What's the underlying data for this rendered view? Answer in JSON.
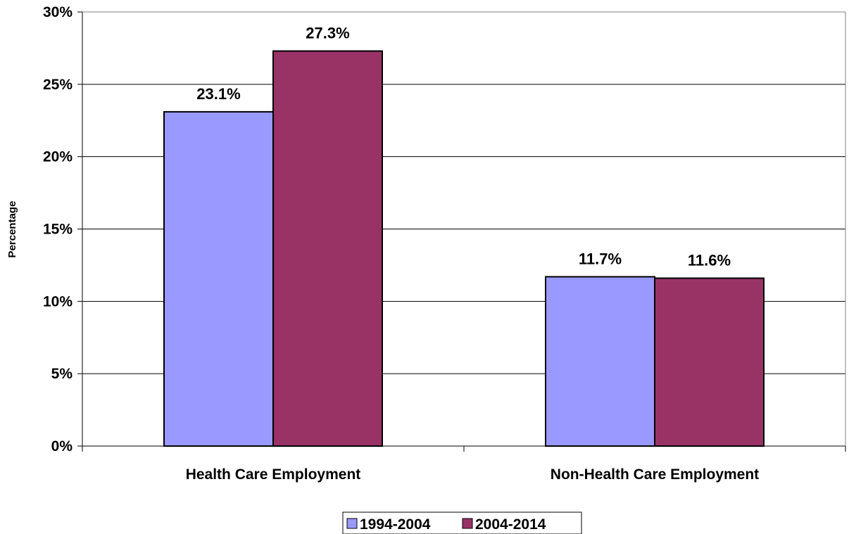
{
  "chart_data": {
    "type": "bar",
    "title": "",
    "xlabel": "",
    "ylabel": "Percentage",
    "categories": [
      "Health Care Employment",
      "Non-Health Care Employment"
    ],
    "series": [
      {
        "name": "1994-2004",
        "values": [
          23.1,
          11.7
        ],
        "labels": [
          "23.1%",
          "11.7%"
        ],
        "color": "#9999ff"
      },
      {
        "name": "2004-2014",
        "values": [
          27.3,
          11.6
        ],
        "labels": [
          "27.3%",
          "11.6%"
        ],
        "color": "#993366"
      }
    ],
    "ylim": [
      0,
      30
    ],
    "yticks": [
      0,
      5,
      10,
      15,
      20,
      25,
      30
    ],
    "ytick_labels": [
      "0%",
      "5%",
      "10%",
      "15%",
      "20%",
      "25%",
      "30%"
    ],
    "grid": true,
    "legend_position": "bottom"
  }
}
